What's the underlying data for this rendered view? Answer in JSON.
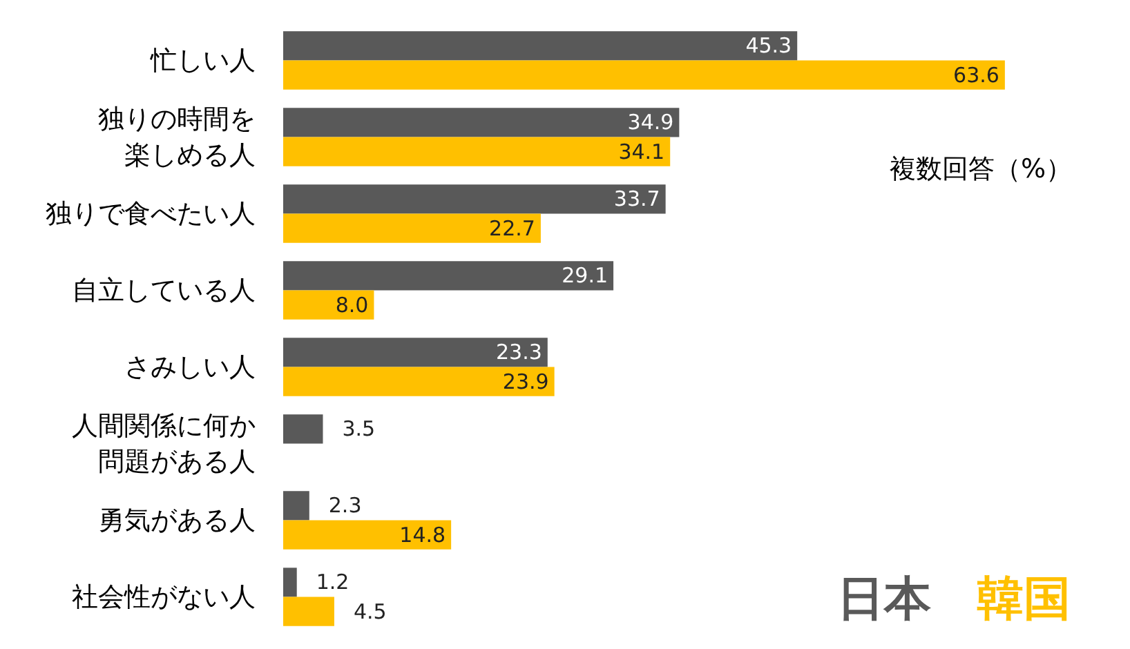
{
  "chart_data": {
    "type": "bar",
    "orientation": "horizontal",
    "legend": "bottom right",
    "grid": false,
    "tick_labels": "y",
    "categories": [
      "忙しい人",
      "独りの時間を楽しめる人",
      "独りで食べたい人",
      "自立している人",
      "さみしい人",
      "人間関係に何か問題がある人",
      "勇気がある人",
      "社会性がない人"
    ],
    "series": [
      {
        "name": "日本",
        "color": "#595959",
        "values": [
          45.3,
          34.9,
          33.7,
          29.1,
          23.3,
          3.5,
          2.3,
          1.2
        ],
        "value_labels": [
          "45.3",
          "34.9",
          "33.7",
          "29.1",
          "23.3",
          "3.5",
          "2.3",
          "1.2"
        ]
      },
      {
        "name": "韓国",
        "color": "#ffc000",
        "values": [
          63.6,
          34.1,
          22.7,
          8.0,
          23.9,
          null,
          14.8,
          4.5
        ],
        "value_labels": [
          "63.6",
          "34.1",
          "22.7",
          "8.0",
          "23.9",
          null,
          "14.8",
          "4.5"
        ]
      }
    ],
    "annotations": [
      "複数回答（%）"
    ]
  }
}
